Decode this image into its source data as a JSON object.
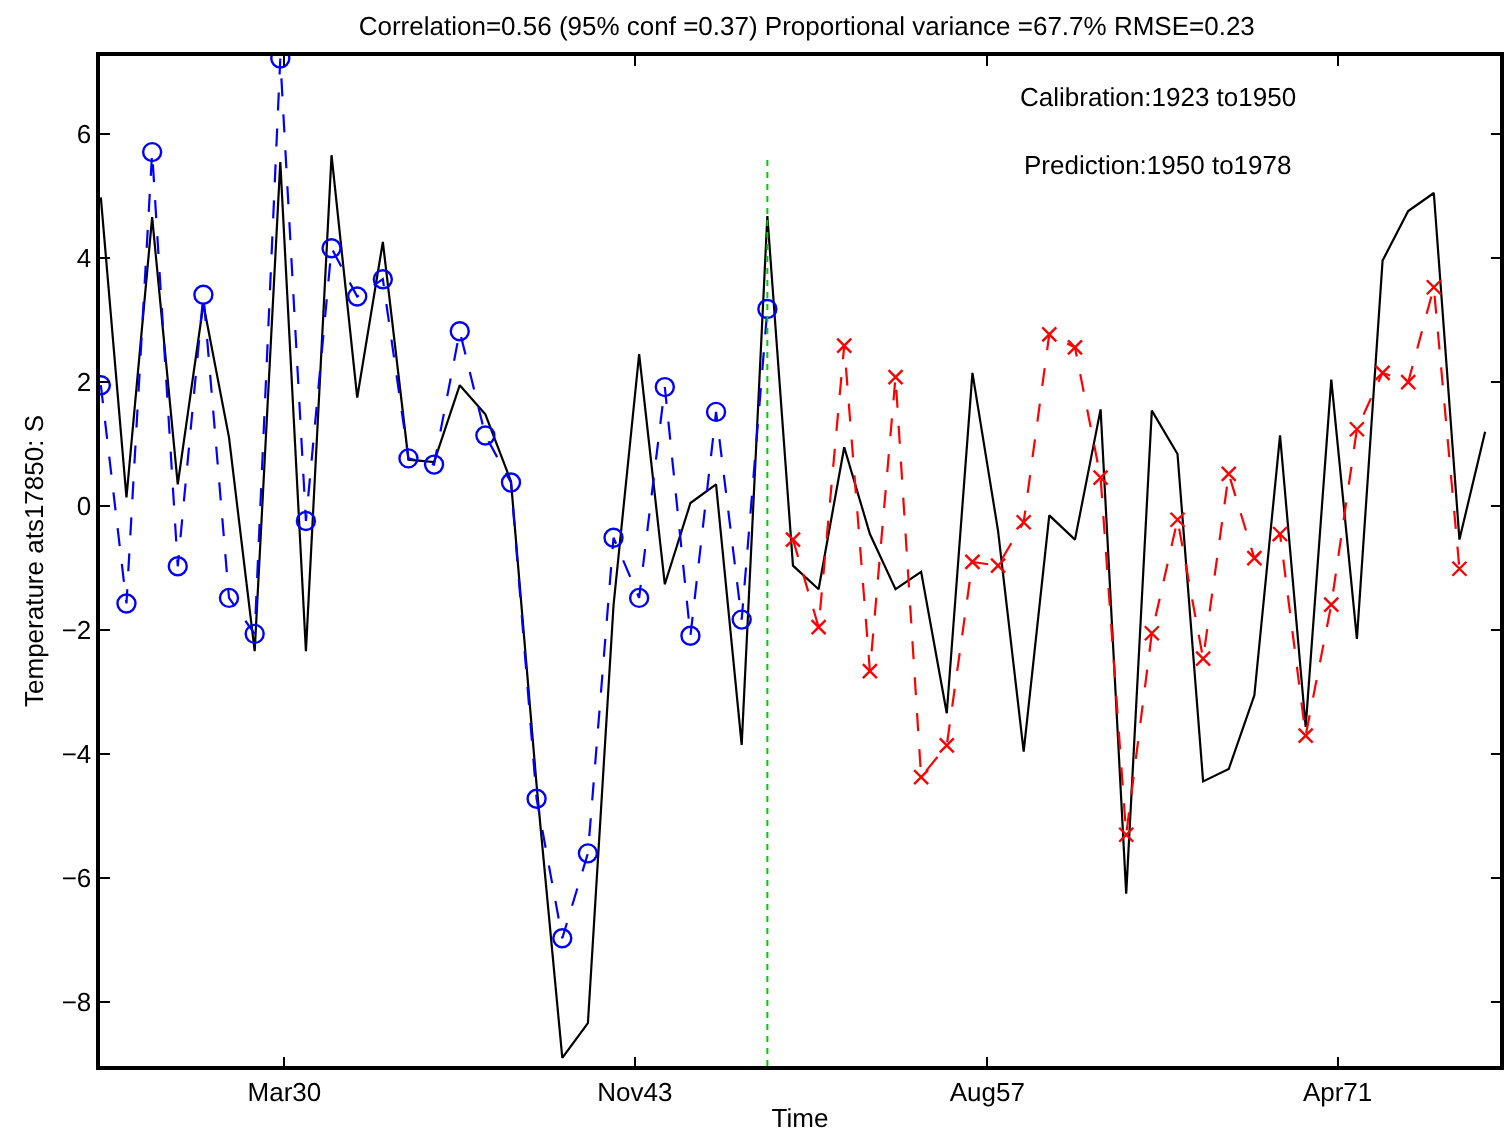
{
  "chart_data": {
    "type": "line",
    "title": "Correlation=0.56 (95% conf =0.37) Proportional variance =67.7% RMSE=0.23",
    "xlabel": "Time",
    "ylabel": "Temperature ats17850: S",
    "annotations": [
      "Calibration:1923 to1950",
      "Prediction:1950 to1978"
    ],
    "xlim": [
      "1922-12-20",
      "1977-08-01"
    ],
    "xticks": [
      {
        "value": "1930-03-01",
        "label": "Mar30"
      },
      {
        "value": "1943-11-01",
        "label": "Nov43"
      },
      {
        "value": "1957-08-01",
        "label": "Aug57"
      },
      {
        "value": "1971-04-01",
        "label": "Apr71"
      }
    ],
    "ylim": [
      -9.03,
      7.26
    ],
    "yticks": [
      -8,
      -6,
      -4,
      -2,
      0,
      2,
      4,
      6
    ],
    "ref_lines": [
      {
        "axis": "x",
        "value": "1949",
        "label": null,
        "color": "#00cc00",
        "line_style": "dotted"
      }
    ],
    "series": [
      {
        "color": "#000000",
        "marker": "none",
        "line_style": "solid",
        "x": [
          "1923",
          "1924",
          "1925",
          "1926",
          "1927",
          "1928",
          "1929",
          "1930",
          "1931",
          "1932",
          "1933",
          "1934",
          "1935",
          "1936",
          "1937",
          "1938",
          "1939",
          "1940",
          "1941",
          "1942",
          "1943",
          "1944",
          "1945",
          "1946",
          "1947",
          "1948",
          "1949",
          "1950",
          "1951",
          "1952",
          "1953",
          "1954",
          "1955",
          "1956",
          "1957",
          "1958",
          "1959",
          "1960",
          "1961",
          "1962",
          "1963",
          "1964",
          "1965",
          "1966",
          "1967",
          "1968",
          "1969",
          "1970",
          "1971",
          "1972",
          "1973",
          "1974",
          "1975",
          "1976",
          "1977"
        ],
        "values": [
          4.98,
          0.14,
          4.66,
          0.35,
          3.26,
          1.11,
          -2.34,
          5.55,
          -2.34,
          5.66,
          1.75,
          4.26,
          0.75,
          0.71,
          1.95,
          1.48,
          0.4,
          -4.5,
          -8.9,
          -8.34,
          -1.6,
          2.45,
          -1.26,
          0.05,
          0.35,
          -3.85,
          4.68,
          -0.96,
          -1.34,
          0.95,
          -0.45,
          -1.34,
          -1.06,
          -3.34,
          2.15,
          -0.4,
          -3.96,
          -0.15,
          -0.54,
          1.56,
          -6.25,
          1.54,
          0.84,
          -4.44,
          -4.24,
          -3.05,
          1.14,
          -3.56,
          2.04,
          -2.14,
          3.96,
          4.76,
          5.05,
          -0.54,
          1.2
        ]
      },
      {
        "color": "#0000ff",
        "marker": "circle",
        "line_style": "dashed",
        "x": [
          "1923",
          "1924",
          "1925",
          "1926",
          "1927",
          "1928",
          "1929",
          "1930",
          "1931",
          "1932",
          "1933",
          "1934",
          "1935",
          "1936",
          "1937",
          "1938",
          "1939",
          "1940",
          "1941",
          "1942",
          "1943",
          "1944",
          "1945",
          "1946",
          "1947",
          "1948",
          "1949"
        ],
        "values": [
          1.95,
          -1.57,
          5.71,
          -0.97,
          3.41,
          -1.48,
          -2.06,
          7.22,
          -0.24,
          4.16,
          3.38,
          3.66,
          0.77,
          0.67,
          2.82,
          1.14,
          0.38,
          -4.72,
          -6.97,
          -5.6,
          -0.51,
          -1.48,
          1.92,
          -2.09,
          1.52,
          -1.83,
          3.18
        ]
      },
      {
        "color": "#ff0000",
        "marker": "cross",
        "line_style": "dashed",
        "x": [
          "1950",
          "1951",
          "1952",
          "1953",
          "1954",
          "1955",
          "1956",
          "1957",
          "1958",
          "1959",
          "1960",
          "1961",
          "1962",
          "1963",
          "1964",
          "1965",
          "1966",
          "1967",
          "1968",
          "1969",
          "1970",
          "1971",
          "1972",
          "1973",
          "1974",
          "1975",
          "1976"
        ],
        "values": [
          -0.54,
          -1.95,
          2.59,
          -2.66,
          2.08,
          -4.37,
          -3.86,
          -0.9,
          -0.96,
          -0.26,
          2.77,
          2.56,
          0.46,
          -5.3,
          -2.05,
          -0.22,
          -2.46,
          0.52,
          -0.84,
          -0.45,
          -3.7,
          -1.59,
          1.24,
          2.15,
          2.0,
          3.53,
          -1.01
        ]
      }
    ]
  }
}
